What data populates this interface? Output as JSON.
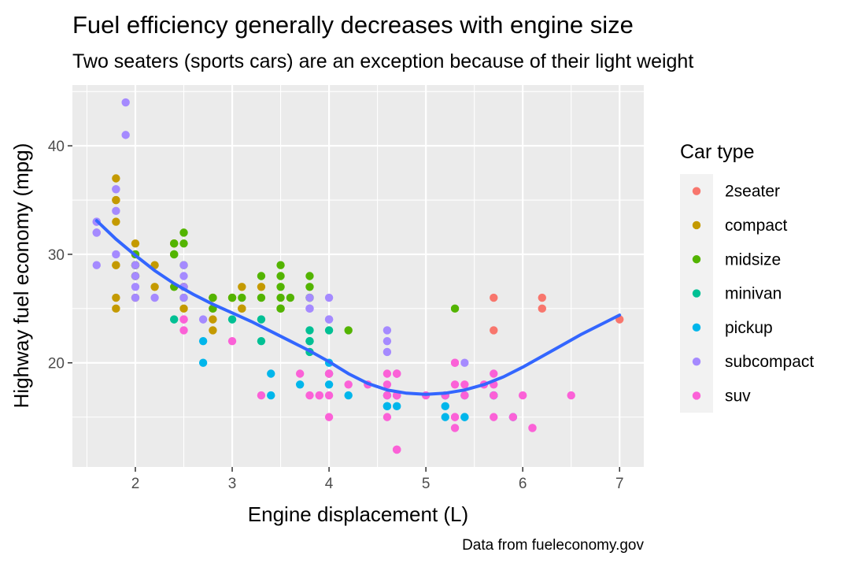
{
  "chart_data": {
    "type": "scatter",
    "title": "Fuel efficiency generally decreases with engine size",
    "subtitle": "Two seaters (sports cars) are an exception because of their light weight",
    "xlabel": "Engine displacement (L)",
    "ylabel": "Highway fuel economy (mpg)",
    "caption": "Data from fueleconomy.gov",
    "xlim": [
      1.35,
      7.25
    ],
    "ylim": [
      10.4,
      45.6
    ],
    "x_ticks": [
      2,
      3,
      4,
      5,
      6,
      7
    ],
    "y_ticks": [
      20,
      30,
      40
    ],
    "grid": true,
    "legend": {
      "title": "Car type",
      "position": "right"
    },
    "series": [
      {
        "name": "2seater",
        "color": "#F8766D",
        "points": [
          [
            5.7,
            26
          ],
          [
            5.7,
            23
          ],
          [
            6.2,
            26
          ],
          [
            6.2,
            25
          ],
          [
            7.0,
            24
          ]
        ]
      },
      {
        "name": "compact",
        "color": "#C49A00",
        "points": [
          [
            1.8,
            29
          ],
          [
            1.8,
            29
          ],
          [
            2.0,
            31
          ],
          [
            2.0,
            30
          ],
          [
            2.8,
            26
          ],
          [
            2.8,
            26
          ],
          [
            3.1,
            27
          ],
          [
            1.8,
            26
          ],
          [
            1.8,
            25
          ],
          [
            2.0,
            28
          ],
          [
            2.0,
            28
          ],
          [
            2.8,
            26
          ],
          [
            2.8,
            25
          ],
          [
            3.1,
            25
          ],
          [
            3.1,
            25
          ],
          [
            2.2,
            27
          ],
          [
            2.2,
            29
          ],
          [
            2.4,
            31
          ],
          [
            2.4,
            31
          ],
          [
            3.0,
            26
          ],
          [
            3.0,
            26
          ],
          [
            3.3,
            27
          ],
          [
            1.8,
            33
          ],
          [
            1.8,
            35
          ],
          [
            1.8,
            37
          ],
          [
            1.8,
            35
          ],
          [
            2.0,
            29
          ],
          [
            2.0,
            26
          ],
          [
            2.0,
            29
          ],
          [
            2.8,
            24
          ],
          [
            2.8,
            23
          ],
          [
            2.5,
            27
          ],
          [
            2.5,
            25
          ],
          [
            2.5,
            27
          ]
        ]
      },
      {
        "name": "midsize",
        "color": "#53B400",
        "points": [
          [
            2.4,
            30
          ],
          [
            2.4,
            31
          ],
          [
            2.5,
            32
          ],
          [
            2.5,
            31
          ],
          [
            3.1,
            26
          ],
          [
            3.5,
            29
          ],
          [
            3.5,
            28
          ],
          [
            3.8,
            26
          ],
          [
            3.8,
            26
          ],
          [
            3.5,
            27
          ],
          [
            3.8,
            28
          ],
          [
            3.8,
            27
          ],
          [
            5.3,
            25
          ],
          [
            2.0,
            29
          ],
          [
            2.0,
            28
          ],
          [
            2.5,
            26
          ],
          [
            2.8,
            26
          ],
          [
            3.3,
            28
          ],
          [
            3.3,
            26
          ],
          [
            3.5,
            26
          ],
          [
            3.5,
            25
          ],
          [
            3.6,
            26
          ],
          [
            2.4,
            27
          ],
          [
            2.4,
            30
          ],
          [
            2.5,
            29
          ],
          [
            3.0,
            26
          ],
          [
            3.5,
            25
          ],
          [
            4.2,
            23
          ],
          [
            2.0,
            29
          ],
          [
            2.0,
            30
          ],
          [
            2.8,
            25
          ]
        ]
      },
      {
        "name": "minivan",
        "color": "#00C094",
        "points": [
          [
            2.4,
            24
          ],
          [
            3.0,
            24
          ],
          [
            3.3,
            22
          ],
          [
            3.3,
            24
          ],
          [
            3.8,
            22
          ],
          [
            3.8,
            23
          ],
          [
            3.8,
            21
          ],
          [
            4.0,
            23
          ],
          [
            4.0,
            19
          ],
          [
            3.8,
            22
          ]
        ]
      },
      {
        "name": "pickup",
        "color": "#00B6EB",
        "points": [
          [
            2.7,
            20
          ],
          [
            2.7,
            22
          ],
          [
            3.4,
            19
          ],
          [
            3.4,
            17
          ],
          [
            3.7,
            18
          ],
          [
            4.0,
            18
          ],
          [
            4.2,
            17
          ],
          [
            4.6,
            17
          ],
          [
            4.6,
            16
          ],
          [
            4.7,
            16
          ],
          [
            4.7,
            17
          ],
          [
            5.2,
            15
          ],
          [
            5.2,
            16
          ],
          [
            5.2,
            17
          ],
          [
            5.4,
            17
          ],
          [
            5.4,
            15
          ],
          [
            5.7,
            17
          ],
          [
            5.9,
            15
          ],
          [
            4.0,
            20
          ],
          [
            4.6,
            16
          ],
          [
            5.4,
            15
          ],
          [
            5.7,
            17
          ],
          [
            5.2,
            17
          ]
        ]
      },
      {
        "name": "subcompact",
        "color": "#A58AFF",
        "points": [
          [
            1.6,
            33
          ],
          [
            1.6,
            32
          ],
          [
            1.6,
            32
          ],
          [
            1.6,
            29
          ],
          [
            1.8,
            34
          ],
          [
            1.8,
            36
          ],
          [
            1.8,
            36
          ],
          [
            2.0,
            29
          ],
          [
            2.0,
            26
          ],
          [
            2.0,
            27
          ],
          [
            2.2,
            26
          ],
          [
            2.5,
            29
          ],
          [
            2.5,
            28
          ],
          [
            2.5,
            27
          ],
          [
            2.7,
            24
          ],
          [
            1.9,
            44
          ],
          [
            1.9,
            41
          ],
          [
            3.8,
            26
          ],
          [
            3.8,
            25
          ],
          [
            4.0,
            26
          ],
          [
            4.0,
            24
          ],
          [
            4.6,
            23
          ],
          [
            4.6,
            22
          ],
          [
            4.6,
            21
          ],
          [
            5.4,
            20
          ],
          [
            4.7,
            19
          ],
          [
            1.8,
            30
          ],
          [
            2.5,
            26
          ],
          [
            1.6,
            33
          ],
          [
            4.0,
            24
          ],
          [
            3.8,
            25
          ],
          [
            2.0,
            28
          ]
        ]
      },
      {
        "name": "suv",
        "color": "#FB61D7",
        "points": [
          [
            5.3,
            20
          ],
          [
            5.3,
            15
          ],
          [
            5.3,
            20
          ],
          [
            5.7,
            15
          ],
          [
            6.0,
            17
          ],
          [
            5.3,
            14
          ],
          [
            5.3,
            15
          ],
          [
            5.7,
            17
          ],
          [
            6.5,
            17
          ],
          [
            3.7,
            19
          ],
          [
            4.7,
            19
          ],
          [
            4.7,
            17
          ],
          [
            4.7,
            12
          ],
          [
            5.2,
            17
          ],
          [
            5.7,
            18
          ],
          [
            5.9,
            15
          ],
          [
            4.7,
            17
          ],
          [
            4.7,
            12
          ],
          [
            4.6,
            15
          ],
          [
            4.6,
            18
          ],
          [
            5.4,
            18
          ],
          [
            5.4,
            17
          ],
          [
            5.7,
            19
          ],
          [
            6.1,
            14
          ],
          [
            4.0,
            15
          ],
          [
            4.0,
            17
          ],
          [
            4.6,
            17
          ],
          [
            5.0,
            17
          ],
          [
            3.9,
            17
          ],
          [
            4.0,
            19
          ],
          [
            4.2,
            18
          ],
          [
            4.4,
            18
          ],
          [
            4.6,
            19
          ],
          [
            4.7,
            12
          ],
          [
            3.3,
            17
          ],
          [
            3.8,
            17
          ],
          [
            2.5,
            23
          ],
          [
            2.5,
            24
          ],
          [
            3.0,
            22
          ],
          [
            2.5,
            24
          ],
          [
            4.7,
            19
          ],
          [
            5.3,
            18
          ],
          [
            5.6,
            18
          ],
          [
            6.1,
            14
          ],
          [
            4.7,
            17
          ],
          [
            4.0,
            19
          ],
          [
            3.9,
            17
          ]
        ]
      }
    ],
    "trend": {
      "name": "loess",
      "color": "#3366FF",
      "x": [
        1.6,
        1.8,
        2.0,
        2.2,
        2.4,
        2.6,
        2.8,
        3.0,
        3.2,
        3.4,
        3.6,
        3.8,
        4.0,
        4.2,
        4.4,
        4.6,
        4.8,
        5.0,
        5.2,
        5.4,
        5.6,
        5.8,
        6.0,
        6.2,
        6.4,
        6.6,
        6.8,
        7.0
      ],
      "y": [
        33.1,
        31.4,
        29.9,
        28.5,
        27.3,
        26.3,
        25.4,
        24.6,
        23.8,
        22.9,
        22.0,
        21.1,
        20.1,
        19.0,
        18.1,
        17.5,
        17.2,
        17.1,
        17.2,
        17.5,
        18.0,
        18.7,
        19.6,
        20.6,
        21.6,
        22.6,
        23.5,
        24.4
      ]
    }
  }
}
